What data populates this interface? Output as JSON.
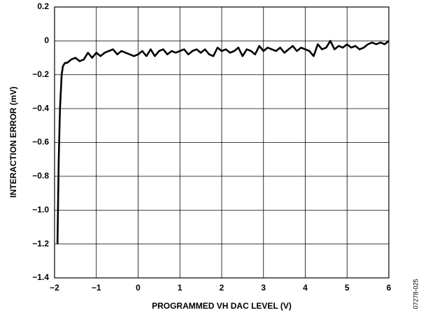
{
  "chart_data": {
    "type": "line",
    "x_label": "PROGRAMMED VH DAC LEVEL (V)",
    "y_label": "INTERACTION ERROR (mV)",
    "side_note": "07278-025",
    "xlim": [
      -2,
      6
    ],
    "ylim": [
      -1.4,
      0.2
    ],
    "xticks": [
      {
        "value": -2,
        "label": "−2"
      },
      {
        "value": -1,
        "label": "−1"
      },
      0,
      1,
      2,
      3,
      4,
      5,
      6
    ],
    "yticks": [
      0.2,
      0,
      {
        "value": -0.2,
        "label": "−0.2"
      },
      {
        "value": -0.4,
        "label": "−0.4"
      },
      {
        "value": -0.6,
        "label": "−0.6"
      },
      {
        "value": -0.8,
        "label": "−0.8"
      },
      {
        "value": -1.0,
        "label": "−1.0"
      },
      {
        "value": -1.2,
        "label": "−1.2"
      },
      {
        "value": -1.4,
        "label": "−1.4"
      }
    ],
    "grid": true,
    "series": [
      {
        "color": "#000000",
        "x": [
          -1.93,
          -1.9,
          -1.87,
          -1.83,
          -1.8,
          -1.75,
          -1.7,
          -1.6,
          -1.5,
          -1.4,
          -1.3,
          -1.2,
          -1.1,
          -1.0,
          -0.9,
          -0.8,
          -0.7,
          -0.6,
          -0.5,
          -0.4,
          -0.3,
          -0.2,
          -0.1,
          0.0,
          0.1,
          0.2,
          0.3,
          0.4,
          0.5,
          0.6,
          0.7,
          0.8,
          0.9,
          1.0,
          1.1,
          1.2,
          1.3,
          1.4,
          1.5,
          1.6,
          1.7,
          1.8,
          1.9,
          2.0,
          2.1,
          2.2,
          2.3,
          2.4,
          2.5,
          2.6,
          2.7,
          2.8,
          2.9,
          3.0,
          3.1,
          3.2,
          3.3,
          3.4,
          3.5,
          3.6,
          3.7,
          3.8,
          3.9,
          4.0,
          4.1,
          4.2,
          4.3,
          4.4,
          4.5,
          4.6,
          4.7,
          4.8,
          4.9,
          5.0,
          5.1,
          5.2,
          5.3,
          5.4,
          5.5,
          5.6,
          5.7,
          5.8,
          5.9,
          6.0
        ],
        "values": [
          -1.2,
          -0.7,
          -0.4,
          -0.2,
          -0.15,
          -0.13,
          -0.13,
          -0.11,
          -0.1,
          -0.12,
          -0.11,
          -0.07,
          -0.1,
          -0.07,
          -0.09,
          -0.07,
          -0.06,
          -0.05,
          -0.08,
          -0.06,
          -0.07,
          -0.08,
          -0.09,
          -0.08,
          -0.06,
          -0.09,
          -0.05,
          -0.09,
          -0.06,
          -0.05,
          -0.08,
          -0.06,
          -0.07,
          -0.06,
          -0.05,
          -0.08,
          -0.06,
          -0.05,
          -0.07,
          -0.05,
          -0.08,
          -0.09,
          -0.04,
          -0.06,
          -0.05,
          -0.07,
          -0.06,
          -0.04,
          -0.09,
          -0.05,
          -0.06,
          -0.08,
          -0.03,
          -0.06,
          -0.04,
          -0.05,
          -0.06,
          -0.04,
          -0.07,
          -0.05,
          -0.03,
          -0.06,
          -0.04,
          -0.05,
          -0.06,
          -0.09,
          -0.02,
          -0.05,
          -0.04,
          0.0,
          -0.05,
          -0.03,
          -0.04,
          -0.02,
          -0.04,
          -0.03,
          -0.05,
          -0.04,
          -0.02,
          -0.01,
          -0.02,
          -0.01,
          -0.02,
          0.0
        ]
      }
    ]
  }
}
